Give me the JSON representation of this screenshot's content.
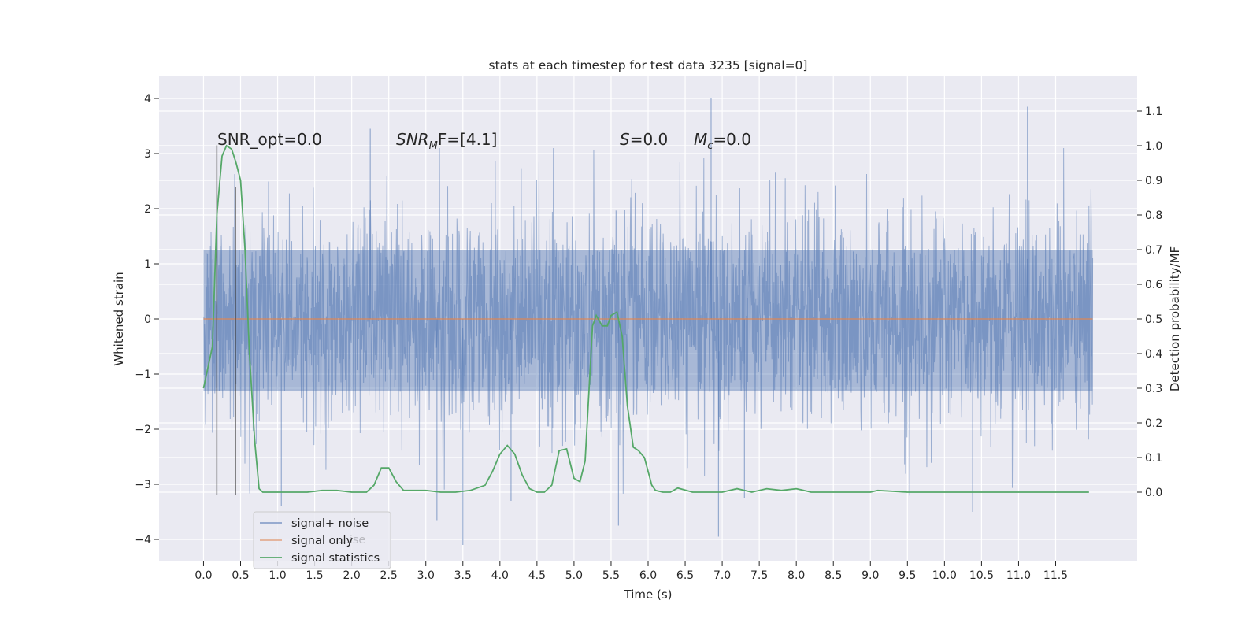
{
  "chart_data": {
    "type": "line",
    "title": "stats at each timestep for test data 3235 [signal=0]",
    "xlabel": "Time (s)",
    "ylabel_left": "Whitened strain",
    "ylabel_right": "Detection probability/MF",
    "xlim": [
      -0.6,
      12.6
    ],
    "ylim_left": [
      -4.4,
      4.4
    ],
    "ylim_right": [
      -0.2,
      1.2
    ],
    "grid": true,
    "legend_position": "lower-left",
    "x_ticks": [
      "0.0",
      "0.5",
      "1.0",
      "1.5",
      "2.0",
      "2.5",
      "3.0",
      "3.5",
      "4.0",
      "4.5",
      "5.0",
      "5.5",
      "6.0",
      "6.5",
      "7.0",
      "7.5",
      "8.0",
      "8.5",
      "9.0",
      "9.5",
      "10.0",
      "10.5",
      "11.0",
      "11.5"
    ],
    "y_left_ticks": [
      "4",
      "3",
      "2",
      "1",
      "0",
      "−1",
      "−2",
      "−3",
      "−4"
    ],
    "y_left_tick_values": [
      4,
      3,
      2,
      1,
      0,
      -1,
      -2,
      -3,
      -4
    ],
    "y_right_ticks": [
      "1.1",
      "1.0",
      "0.9",
      "0.8",
      "0.7",
      "0.6",
      "0.5",
      "0.4",
      "0.3",
      "0.2",
      "0.1",
      "0.0"
    ],
    "y_right_tick_values": [
      1.1,
      1.0,
      0.9,
      0.8,
      0.7,
      0.6,
      0.5,
      0.4,
      0.3,
      0.2,
      0.1,
      0.0
    ],
    "annotations": {
      "snr_opt": "SNR_opt=0.0",
      "snr_mf_base": "SNR",
      "snr_mf_sub": "M",
      "snr_mf_rest": "F=[4.1]",
      "s_italic": "S",
      "s_rest": "=0.0",
      "mc_base": "M",
      "mc_sub": "c",
      "mc_rest": "=0.0"
    },
    "series": [
      {
        "name": "signal+ noise",
        "color": "#4c72b0",
        "axis": "left",
        "x_range": [
          0.0,
          12.0
        ],
        "envelope_core": [
          -1.3,
          1.25
        ],
        "spike_range": [
          -4.1,
          4.0
        ],
        "notable_spikes": [
          {
            "x": 6.85,
            "y": 4.0
          },
          {
            "x": 11.12,
            "y": 3.85
          },
          {
            "x": 2.25,
            "y": 3.45
          },
          {
            "x": 3.5,
            "y": -4.1
          },
          {
            "x": 6.95,
            "y": -3.95
          },
          {
            "x": 5.6,
            "y": -3.75
          },
          {
            "x": 3.15,
            "y": -3.65
          },
          {
            "x": 10.38,
            "y": -3.5
          },
          {
            "x": 1.05,
            "y": -3.4
          },
          {
            "x": 4.15,
            "y": -3.3
          },
          {
            "x": 7.3,
            "y": -3.25
          }
        ]
      },
      {
        "name": "signal only",
        "color": "#dd8452",
        "axis": "left",
        "x": [
          0.0,
          12.0
        ],
        "y": [
          0.0,
          0.0
        ]
      },
      {
        "name": "signal statistics",
        "color": "#55a868",
        "axis": "right",
        "x": [
          0.0,
          0.12,
          0.18,
          0.25,
          0.31,
          0.38,
          0.44,
          0.5,
          0.56,
          0.62,
          0.69,
          0.75,
          0.8,
          0.9,
          1.0,
          1.2,
          1.4,
          1.6,
          1.8,
          2.0,
          2.2,
          2.3,
          2.4,
          2.5,
          2.6,
          2.7,
          2.8,
          3.0,
          3.2,
          3.4,
          3.6,
          3.8,
          3.9,
          4.0,
          4.1,
          4.2,
          4.3,
          4.4,
          4.5,
          4.6,
          4.7,
          4.8,
          4.9,
          5.0,
          5.08,
          5.15,
          5.25,
          5.3,
          5.38,
          5.45,
          5.5,
          5.58,
          5.65,
          5.72,
          5.8,
          5.87,
          5.95,
          6.0,
          6.05,
          6.1,
          6.2,
          6.3,
          6.4,
          6.6,
          6.8,
          7.0,
          7.2,
          7.4,
          7.6,
          7.8,
          8.0,
          8.2,
          8.5,
          9.0,
          9.1,
          9.5,
          10.0,
          10.5,
          10.8,
          11.0,
          11.5,
          11.95
        ],
        "y": [
          0.3,
          0.42,
          0.8,
          0.97,
          1.0,
          0.99,
          0.95,
          0.9,
          0.7,
          0.4,
          0.15,
          0.01,
          0.0,
          0.0,
          0.0,
          0.0,
          0.0,
          0.005,
          0.005,
          0.0,
          0.0,
          0.02,
          0.07,
          0.07,
          0.03,
          0.005,
          0.005,
          0.005,
          0.0,
          0.0,
          0.005,
          0.02,
          0.06,
          0.11,
          0.135,
          0.11,
          0.05,
          0.01,
          0.0,
          0.0,
          0.02,
          0.12,
          0.125,
          0.04,
          0.03,
          0.09,
          0.48,
          0.51,
          0.48,
          0.48,
          0.51,
          0.52,
          0.45,
          0.25,
          0.13,
          0.12,
          0.1,
          0.06,
          0.02,
          0.005,
          0.0,
          0.0,
          0.012,
          0.0,
          0.0,
          0.0,
          0.01,
          0.0,
          0.01,
          0.005,
          0.01,
          0.0,
          0.0,
          0.0,
          0.005,
          0.0,
          0.0,
          0.0,
          0.0,
          0.0,
          0.0,
          0.0
        ]
      }
    ],
    "vertical_markers": [
      {
        "x": 0.18,
        "y_range": [
          -3.2,
          3.15
        ],
        "color": "#404040"
      },
      {
        "x": 0.43,
        "y_range": [
          -3.2,
          2.4
        ],
        "color": "#404040"
      }
    ]
  },
  "legend": {
    "items": [
      {
        "label": "signal+ noise",
        "color": "#4c72b0"
      },
      {
        "label": "signal only",
        "color": "#dd8452"
      },
      {
        "label": "signal statistics",
        "color": "#55a868"
      }
    ],
    "ghost_text": "...ise"
  },
  "colors": {
    "axes_bg": "#eaeaf2",
    "grid": "#ffffff",
    "text": "#262626"
  }
}
